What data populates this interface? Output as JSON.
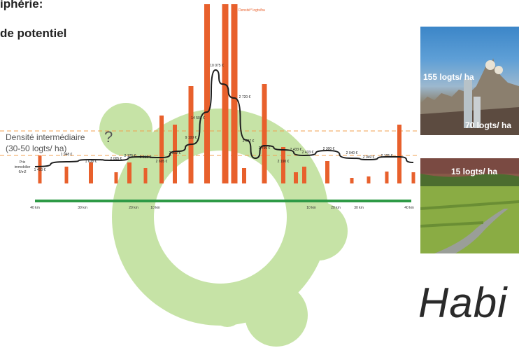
{
  "header": {
    "line1": "iphérie:",
    "line2": "de potentiel"
  },
  "density": {
    "label": "Densité intermédiaire",
    "range": "(30-50 logts/ ha)",
    "question": "?"
  },
  "photos": {
    "city_label_high": "155 logts/ ha",
    "city_label_mid": "70 logts/ ha",
    "country_label": "15 logts/ ha"
  },
  "footer_text": "Habi",
  "colors": {
    "bar": "#e8602c",
    "line": "#1e1e1e",
    "axis": "#2e9a46",
    "ring": "#c6e3a6",
    "dashed_guides": "#f0a050"
  },
  "chart_data": {
    "type": "bar",
    "legend": "Densité* logts/ha",
    "y_axis_label_lines": [
      "Prix",
      "immobilier",
      "€/m2"
    ],
    "bars": [
      {
        "price": "1 400 €",
        "bar_label": ""
      },
      {
        "price": "",
        "bar_label": ""
      },
      {
        "price": "1 948 €",
        "bar_label": ""
      },
      {
        "price": "1 638 €",
        "bar_label": ""
      },
      {
        "price": "",
        "bar_label": ""
      },
      {
        "price": "2 005 €",
        "bar_label": ""
      },
      {
        "price": "2 125 €",
        "bar_label": ""
      },
      {
        "price": "2 010 €",
        "bar_label": ""
      },
      {
        "price": "2 695 €",
        "bar_label": ""
      },
      {
        "price": "2 312 €",
        "bar_label": ""
      },
      {
        "price": "",
        "bar_label": ""
      },
      {
        "price": "9 100 €",
        "bar_label": ""
      },
      {
        "price": "14 501 €",
        "bar_label": ""
      },
      {
        "price": "",
        "bar_label": ""
      },
      {
        "price": "10 075 €",
        "bar_label": ""
      },
      {
        "price": "2 720 €",
        "bar_label": ""
      },
      {
        "price": "",
        "bar_label": ""
      },
      {
        "price": "2 347 €",
        "bar_label": ""
      },
      {
        "price": "2 795 €",
        "bar_label": ""
      },
      {
        "price": "2 190 €",
        "bar_label": ""
      },
      {
        "price": "2 433 €",
        "bar_label": ""
      },
      {
        "price": "2 433 €",
        "bar_label": ""
      },
      {
        "price": "",
        "bar_label": ""
      },
      {
        "price": "2 300 €",
        "bar_label": ""
      },
      {
        "price": "2 040 €",
        "bar_label": ""
      },
      {
        "price": "2 049 €",
        "bar_label": ""
      },
      {
        "price": "",
        "bar_label": ""
      },
      {
        "price": "",
        "bar_label": ""
      },
      {
        "price": "2 125 €",
        "bar_label": ""
      }
    ],
    "axis_ticks": [
      "40 km",
      "30 km",
      "20 km",
      "10 km",
      "",
      "",
      "10 km",
      "20 km",
      "30 km",
      "40 km"
    ]
  }
}
